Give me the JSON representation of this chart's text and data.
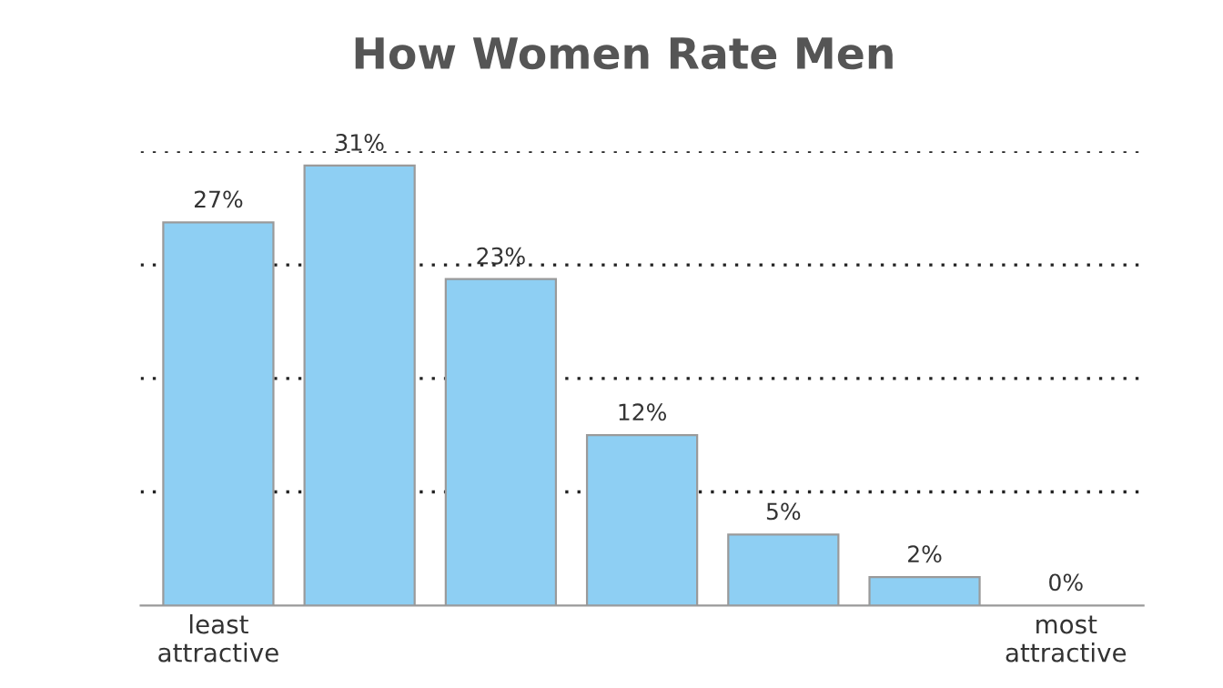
{
  "chart_data": {
    "type": "bar",
    "title": "How Women Rate Men",
    "categories": [
      "least\nattractive",
      null,
      null,
      null,
      null,
      null,
      "most\nattractive"
    ],
    "values": [
      27,
      31,
      23,
      12,
      5,
      2,
      0
    ],
    "value_labels": [
      "27%",
      "31%",
      "23%",
      "12%",
      "5%",
      "2%",
      "0%"
    ],
    "color": "#8ecff3",
    "yticks": [
      {
        "value": 8,
        "label": null
      },
      {
        "value": 16,
        "label": null
      },
      {
        "value": 24,
        "label": null
      },
      {
        "value": 32,
        "label": null
      }
    ],
    "tick_labels": "x",
    "grid": "y"
  }
}
